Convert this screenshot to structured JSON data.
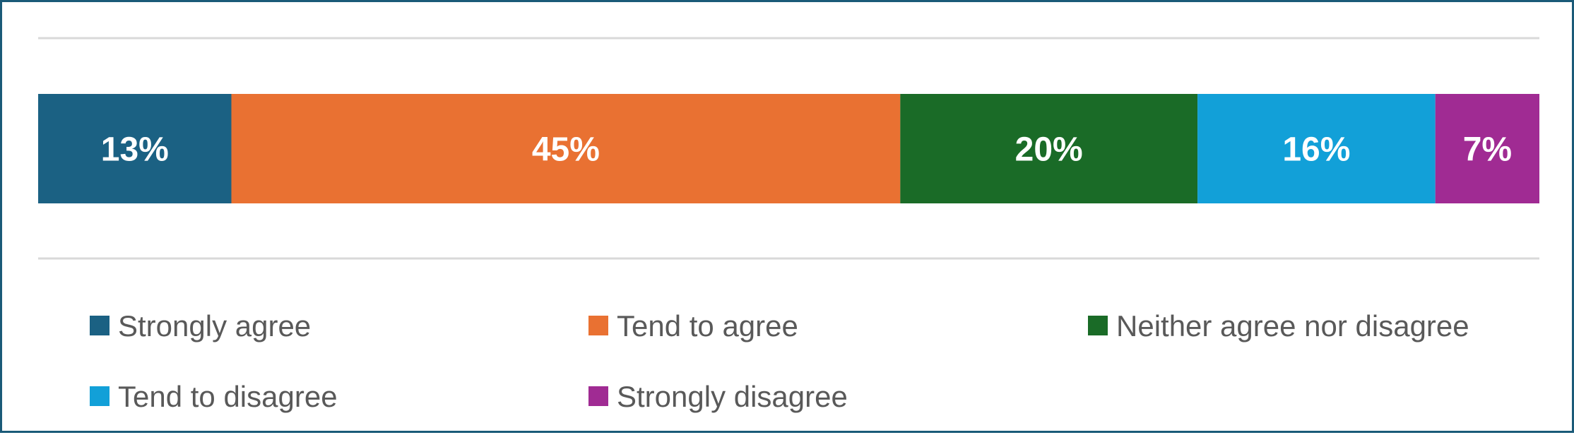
{
  "chart_data": {
    "type": "bar",
    "orientation": "horizontal",
    "stacked": true,
    "percent": true,
    "categories": [
      ""
    ],
    "series": [
      {
        "name": "Strongly agree",
        "values": [
          13
        ],
        "label": "13%",
        "color": "#1b6183"
      },
      {
        "name": "Tend to agree",
        "values": [
          45
        ],
        "label": "45%",
        "color": "#e97132"
      },
      {
        "name": "Neither agree nor disagree",
        "values": [
          20
        ],
        "label": "20%",
        "color": "#1a6b27"
      },
      {
        "name": "Tend to disagree",
        "values": [
          16
        ],
        "label": "16%",
        "color": "#12a0d8"
      },
      {
        "name": "Strongly disagree",
        "values": [
          7
        ],
        "label": "7%",
        "color": "#a02b93"
      }
    ],
    "xlim": [
      0,
      101
    ],
    "grid": true,
    "legend": "bottom",
    "label_color": "#ffffff",
    "border_color": "#1a5a78",
    "gridline_color": "#d9d9d9"
  }
}
